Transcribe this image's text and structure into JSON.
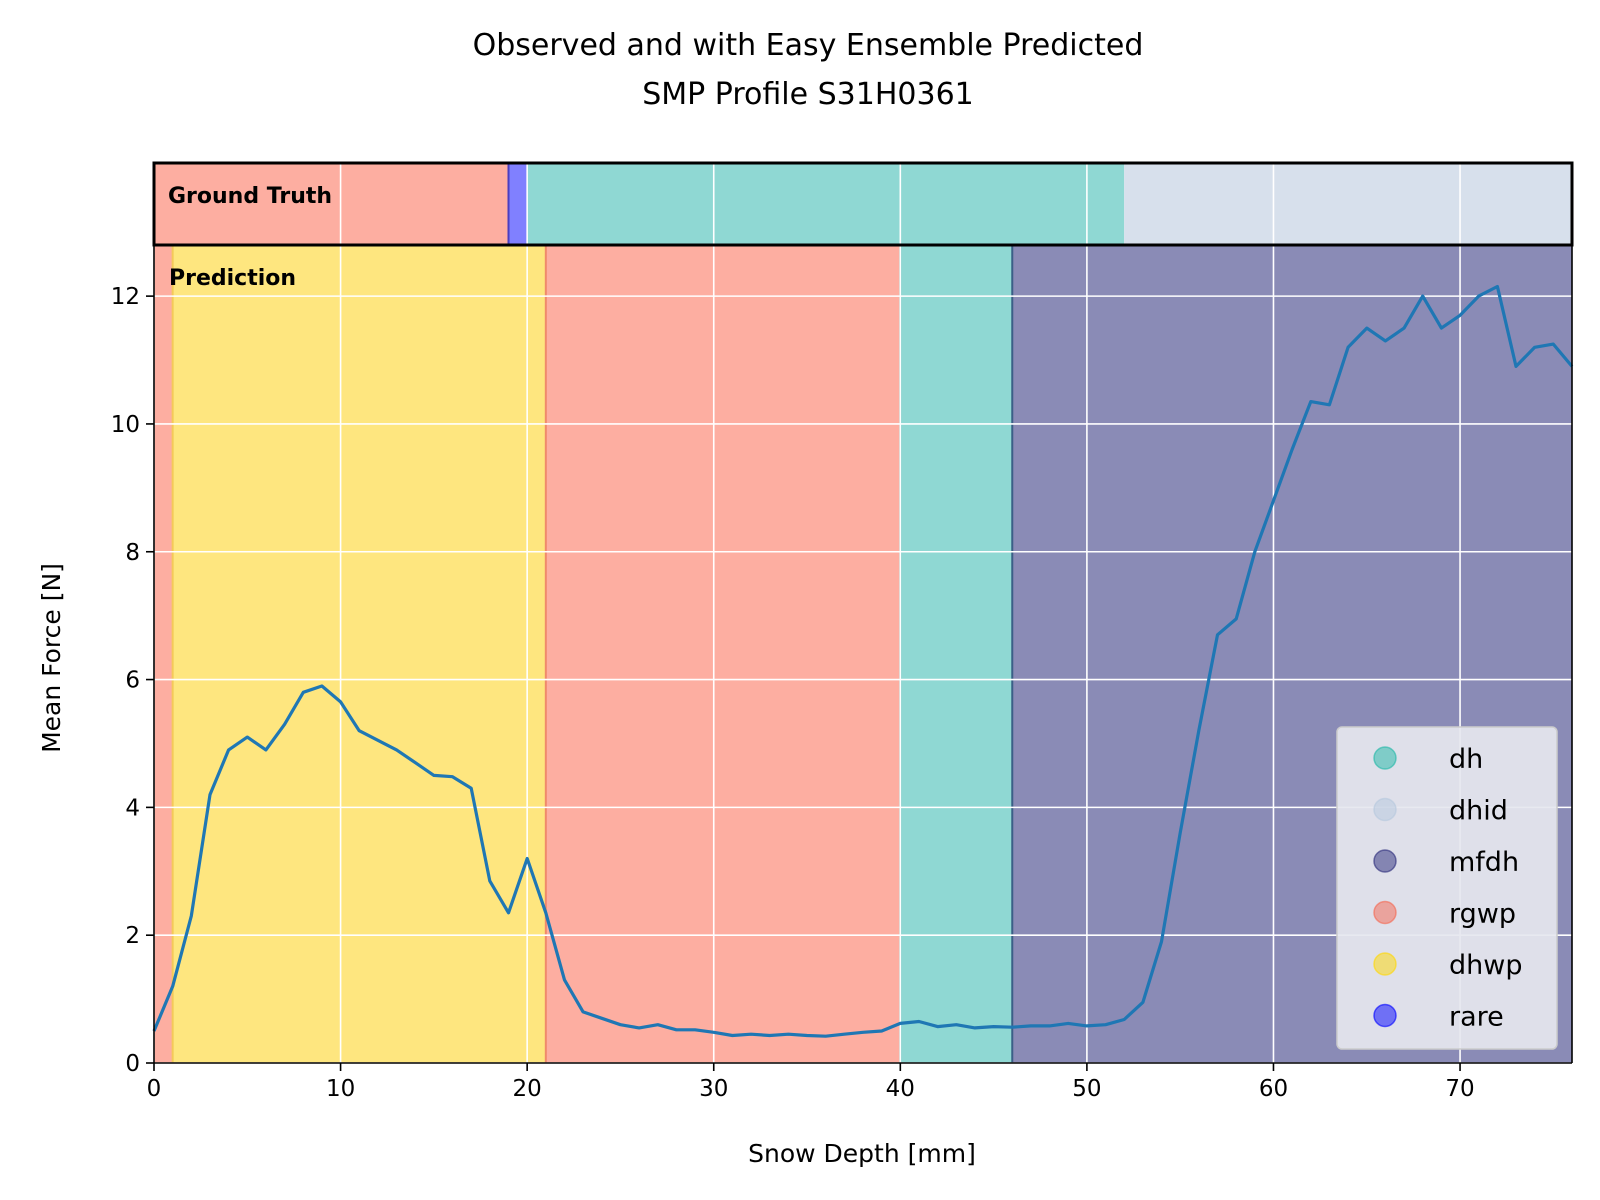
{
  "chart_data": {
    "type": "line",
    "title": "Observed and with Easy Ensemble Predicted\nSMP Profile S31H0361",
    "title_lines": [
      "Observed and with Easy Ensemble Predicted",
      "SMP Profile S31H0361"
    ],
    "xlabel": "Snow Depth [mm]",
    "ylabel": "Mean Force [N]",
    "xlim": [
      0,
      76
    ],
    "ylim": [
      0,
      12.8
    ],
    "xticks": [
      0,
      10,
      20,
      30,
      40,
      50,
      60,
      70
    ],
    "yticks": [
      0,
      2,
      4,
      6,
      8,
      10,
      12
    ],
    "grid": true,
    "legend_position": "lower-right",
    "series": [
      {
        "color": "#1f77b4",
        "x": [
          0,
          1,
          2,
          3,
          4,
          5,
          6,
          7,
          8,
          9,
          10,
          11,
          12,
          13,
          14,
          15,
          16,
          17,
          18,
          19,
          20,
          21,
          22,
          23,
          24,
          25,
          26,
          27,
          28,
          29,
          30,
          31,
          32,
          33,
          34,
          35,
          36,
          37,
          38,
          39,
          40,
          41,
          42,
          43,
          44,
          45,
          46,
          47,
          48,
          49,
          50,
          51,
          52,
          53,
          54,
          55,
          56,
          57,
          58,
          59,
          60,
          61,
          62,
          63,
          64,
          65,
          66,
          67,
          68,
          69,
          70,
          71,
          72,
          73,
          74,
          75,
          76
        ],
        "values": [
          0.5,
          1.2,
          2.3,
          4.2,
          4.9,
          5.1,
          4.9,
          5.3,
          5.8,
          5.9,
          5.65,
          5.2,
          5.05,
          4.9,
          4.7,
          4.5,
          4.48,
          4.3,
          2.85,
          2.35,
          3.2,
          2.35,
          1.3,
          0.8,
          0.7,
          0.6,
          0.55,
          0.6,
          0.52,
          0.52,
          0.48,
          0.43,
          0.45,
          0.43,
          0.45,
          0.43,
          0.42,
          0.45,
          0.48,
          0.5,
          0.62,
          0.65,
          0.57,
          0.6,
          0.55,
          0.57,
          0.56,
          0.58,
          0.58,
          0.62,
          0.58,
          0.6,
          0.68,
          0.95,
          1.9,
          3.6,
          5.2,
          6.7,
          6.95,
          8.0,
          8.8,
          9.6,
          10.35,
          10.3,
          11.2,
          11.5,
          11.3,
          11.5,
          12.0,
          11.5,
          11.7,
          12.0,
          12.15,
          10.9,
          11.2,
          11.25,
          10.9
        ]
      }
    ],
    "ground_truth": {
      "label": "Ground Truth",
      "segments": [
        {
          "start": 0,
          "end": 19,
          "class": "rgwp"
        },
        {
          "start": 19,
          "end": 20,
          "class": "rare"
        },
        {
          "start": 20,
          "end": 52,
          "class": "dh"
        },
        {
          "start": 52,
          "end": 76,
          "class": "dhid"
        }
      ]
    },
    "prediction": {
      "label": "Prediction",
      "segments": [
        {
          "start": 0,
          "end": 1,
          "class": "rgwp"
        },
        {
          "start": 1,
          "end": 21,
          "class": "dhwp"
        },
        {
          "start": 21,
          "end": 40,
          "class": "rgwp"
        },
        {
          "start": 40,
          "end": 46,
          "class": "dh"
        },
        {
          "start": 46,
          "end": 76,
          "class": "mfdh"
        }
      ]
    },
    "legend": [
      {
        "name": "dh",
        "color": "#1fb7a6"
      },
      {
        "name": "dhid",
        "color": "#b6c8de"
      },
      {
        "name": "mfdh",
        "color": "#2a2a7a"
      },
      {
        "name": "rgwp",
        "color": "#f5664f"
      },
      {
        "name": "dhwp",
        "color": "#ffd700"
      },
      {
        "name": "rare",
        "color": "#0000ff"
      }
    ],
    "class_colors": {
      "dh": "#8fd8d3",
      "dhid": "#d7e0ec",
      "mfdh": "#8a8bb6",
      "rgwp": "#fdaea1",
      "dhwp": "#fee67f",
      "rare": "#8080ff"
    }
  }
}
